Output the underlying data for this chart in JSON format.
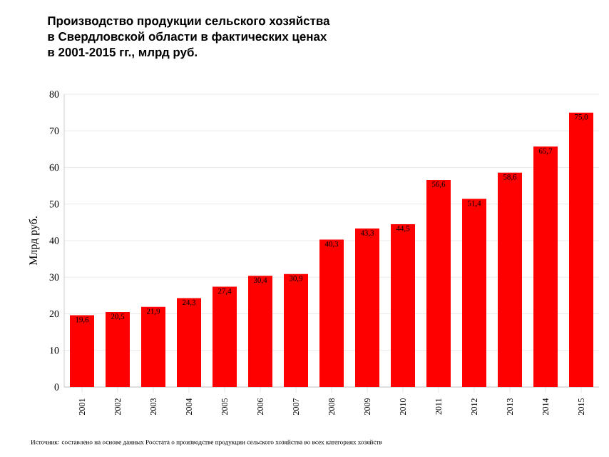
{
  "chart_data": {
    "type": "bar",
    "title": "Производство продукции сельского хозяйства\nв Свердловской области в фактических ценах\nв 2001-2015 гг., млрд руб.",
    "ylabel": "Млрд руб.",
    "categories": [
      "2001",
      "2002",
      "2003",
      "2004",
      "2005",
      "2006",
      "2007",
      "2008",
      "2009",
      "2010",
      "2011",
      "2012",
      "2013",
      "2014",
      "2015"
    ],
    "values": [
      19.6,
      20.5,
      21.9,
      24.3,
      27.4,
      30.4,
      30.9,
      40.3,
      43.3,
      44.5,
      56.6,
      51.4,
      58.6,
      65.7,
      75.0
    ],
    "value_labels": [
      "19,6",
      "20,5",
      "21,9",
      "24,3",
      "27,4",
      "30,4",
      "30,9",
      "40,3",
      "43,3",
      "44,5",
      "56,6",
      "51,4",
      "58,6",
      "65,7",
      "75,0"
    ],
    "color": "#ff0000",
    "ylim": [
      0,
      80
    ],
    "yticks": [
      0,
      10,
      20,
      30,
      40,
      50,
      60,
      70,
      80
    ],
    "grid": "y",
    "annotations": [
      "Источник: составлено на основе данных Росстата о производстве продукции сельского хозяйства во всех категориях хозяйств"
    ]
  }
}
